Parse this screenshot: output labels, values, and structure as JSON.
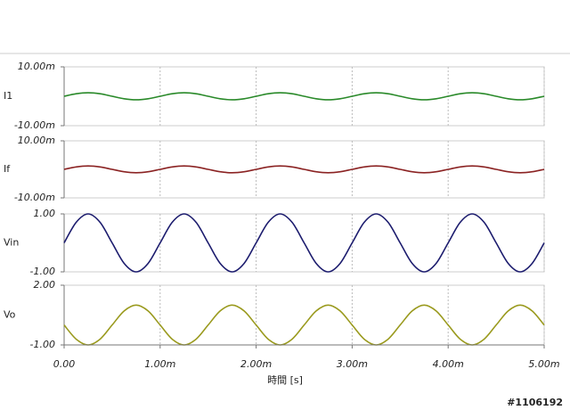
{
  "chart_data": [
    {
      "type": "line",
      "x": [
        0,
        0.000125,
        0.00025,
        0.000375,
        0.0005,
        0.000625,
        0.00075,
        0.000875,
        0.001,
        0.001125,
        0.00125,
        0.001375,
        0.0015,
        0.001625,
        0.00175,
        0.001875,
        0.002,
        0.002125,
        0.00225,
        0.002375,
        0.0025,
        0.002625,
        0.00275,
        0.002875,
        0.003,
        0.003125,
        0.00325,
        0.003375,
        0.0035,
        0.003625,
        0.00375,
        0.003875,
        0.004,
        0.004125,
        0.00425,
        0.004375,
        0.0045,
        0.004625,
        0.00475,
        0.004875,
        0.005
      ],
      "series": [
        {
          "name": "I1",
          "color": "#2a8a2a",
          "values": [
            0,
            0.00085,
            0.0012,
            0.00085,
            0,
            -0.00085,
            -0.0012,
            -0.00085,
            0,
            0.00085,
            0.0012,
            0.00085,
            0,
            -0.00085,
            -0.0012,
            -0.00085,
            0,
            0.00085,
            0.0012,
            0.00085,
            0,
            -0.00085,
            -0.0012,
            -0.00085,
            0,
            0.00085,
            0.0012,
            0.00085,
            0,
            -0.00085,
            -0.0012,
            -0.00085,
            0,
            0.00085,
            0.0012,
            0.00085,
            0,
            -0.00085,
            -0.0012,
            -0.00085,
            0
          ]
        }
      ],
      "xlim": [
        0,
        0.005
      ],
      "ylim": [
        -0.01,
        0.01
      ],
      "yticks": [
        {
          "value": 0.01,
          "label": "10.00m"
        },
        {
          "value": -0.01,
          "label": "-10.00m"
        }
      ]
    },
    {
      "type": "line",
      "x": [
        0,
        0.000125,
        0.00025,
        0.000375,
        0.0005,
        0.000625,
        0.00075,
        0.000875,
        0.001,
        0.001125,
        0.00125,
        0.001375,
        0.0015,
        0.001625,
        0.00175,
        0.001875,
        0.002,
        0.002125,
        0.00225,
        0.002375,
        0.0025,
        0.002625,
        0.00275,
        0.002875,
        0.003,
        0.003125,
        0.00325,
        0.003375,
        0.0035,
        0.003625,
        0.00375,
        0.003875,
        0.004,
        0.004125,
        0.00425,
        0.004375,
        0.0045,
        0.004625,
        0.00475,
        0.004875,
        0.005
      ],
      "series": [
        {
          "name": "If",
          "color": "#8b2323",
          "values": [
            0,
            0.00085,
            0.0012,
            0.00085,
            0,
            -0.00085,
            -0.0012,
            -0.00085,
            0,
            0.00085,
            0.0012,
            0.00085,
            0,
            -0.00085,
            -0.0012,
            -0.00085,
            0,
            0.00085,
            0.0012,
            0.00085,
            0,
            -0.00085,
            -0.0012,
            -0.00085,
            0,
            0.00085,
            0.0012,
            0.00085,
            0,
            -0.00085,
            -0.0012,
            -0.00085,
            0,
            0.00085,
            0.0012,
            0.00085,
            0,
            -0.00085,
            -0.0012,
            -0.00085,
            0
          ]
        }
      ],
      "xlim": [
        0,
        0.005
      ],
      "ylim": [
        -0.01,
        0.01
      ],
      "yticks": [
        {
          "value": 0.01,
          "label": "10.00m"
        },
        {
          "value": -0.01,
          "label": "-10.00m"
        }
      ]
    },
    {
      "type": "line",
      "x": [
        0,
        0.000125,
        0.00025,
        0.000375,
        0.0005,
        0.000625,
        0.00075,
        0.000875,
        0.001,
        0.001125,
        0.00125,
        0.001375,
        0.0015,
        0.001625,
        0.00175,
        0.001875,
        0.002,
        0.002125,
        0.00225,
        0.002375,
        0.0025,
        0.002625,
        0.00275,
        0.002875,
        0.003,
        0.003125,
        0.00325,
        0.003375,
        0.0035,
        0.003625,
        0.00375,
        0.003875,
        0.004,
        0.004125,
        0.00425,
        0.004375,
        0.0045,
        0.004625,
        0.00475,
        0.004875,
        0.005
      ],
      "series": [
        {
          "name": "Vin",
          "color": "#1c1c6e",
          "values": [
            0,
            0.707,
            1,
            0.707,
            0,
            -0.707,
            -1,
            -0.707,
            0,
            0.707,
            1,
            0.707,
            0,
            -0.707,
            -1,
            -0.707,
            0,
            0.707,
            1,
            0.707,
            0,
            -0.707,
            -1,
            -0.707,
            0,
            0.707,
            1,
            0.707,
            0,
            -0.707,
            -1,
            -0.707,
            0,
            0.707,
            1,
            0.707,
            0,
            -0.707,
            -1,
            -0.707,
            0
          ]
        }
      ],
      "xlim": [
        0,
        0.005
      ],
      "ylim": [
        -1,
        1
      ],
      "yticks": [
        {
          "value": 1,
          "label": "1.00"
        },
        {
          "value": -1,
          "label": "-1.00"
        }
      ]
    },
    {
      "type": "line",
      "x": [
        0,
        0.000125,
        0.00025,
        0.000375,
        0.0005,
        0.000625,
        0.00075,
        0.000875,
        0.001,
        0.001125,
        0.00125,
        0.001375,
        0.0015,
        0.001625,
        0.00175,
        0.001875,
        0.002,
        0.002125,
        0.00225,
        0.002375,
        0.0025,
        0.002625,
        0.00275,
        0.002875,
        0.003,
        0.003125,
        0.00325,
        0.003375,
        0.0035,
        0.003625,
        0.00375,
        0.003875,
        0.004,
        0.004125,
        0.00425,
        0.004375,
        0.0045,
        0.004625,
        0.00475,
        0.004875,
        0.005
      ],
      "series": [
        {
          "name": "Vo",
          "color": "#9a9a1e",
          "values": [
            0,
            -0.707,
            -1,
            -0.707,
            0,
            0.707,
            1,
            0.707,
            0,
            -0.707,
            -1,
            -0.707,
            0,
            0.707,
            1,
            0.707,
            0,
            -0.707,
            -1,
            -0.707,
            0,
            0.707,
            1,
            0.707,
            0,
            -0.707,
            -1,
            -0.707,
            0,
            0.707,
            1,
            0.707,
            0,
            -0.707,
            -1,
            -0.707,
            0,
            0.707,
            1,
            0.707,
            0
          ]
        }
      ],
      "xlim": [
        0,
        0.005
      ],
      "ylim": [
        -1,
        2
      ],
      "yticks": [
        {
          "value": 2,
          "label": "2.00"
        },
        {
          "value": -1,
          "label": "-1.00"
        }
      ],
      "xticks": [
        {
          "value": 0,
          "label": "0.00"
        },
        {
          "value": 0.001,
          "label": "1.00m"
        },
        {
          "value": 0.002,
          "label": "2.00m"
        },
        {
          "value": 0.003,
          "label": "3.00m"
        },
        {
          "value": 0.004,
          "label": "4.00m"
        },
        {
          "value": 0.005,
          "label": "5.00m"
        }
      ],
      "xlabel": "時間 [s]"
    }
  ],
  "watermark": "#1106192"
}
